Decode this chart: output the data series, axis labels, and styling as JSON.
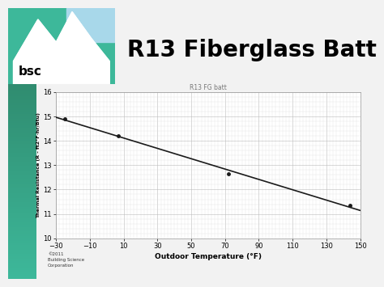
{
  "title_main": "R13 Fiberglass Batt",
  "chart_title": "R13 FG batt",
  "xlabel": "Outdoor Temperature (°F)",
  "ylabel": "Thermal Resistance (R - ft2°F·hr/Btu)",
  "xlim": [
    -30,
    150
  ],
  "ylim": [
    10,
    16
  ],
  "xticks": [
    -30,
    -10,
    10,
    30,
    50,
    70,
    90,
    110,
    130,
    150
  ],
  "yticks": [
    10,
    11,
    12,
    13,
    14,
    15,
    16
  ],
  "data_x": [
    -25,
    7,
    72,
    144
  ],
  "data_y": [
    14.9,
    14.2,
    12.65,
    11.35
  ],
  "line_color": "#1a1a1a",
  "marker_color": "#1a1a1a",
  "grid_major_color": "#bbbbbb",
  "grid_minor_color": "#dddddd",
  "bg_color": "#ffffff",
  "slide_bg": "#f2f2f2",
  "logo_bg": "#3db89a",
  "accent_bar_color": "#3db89a",
  "accent_bar_bottom": "#2a7a5e",
  "bsc_text_color": "#000000",
  "footer_text": "©2011\nBuilding Science\nCorporation",
  "title_fontsize": 20,
  "chart_title_fontsize": 5.5,
  "axis_label_fontsize": 6.5,
  "tick_fontsize": 6
}
